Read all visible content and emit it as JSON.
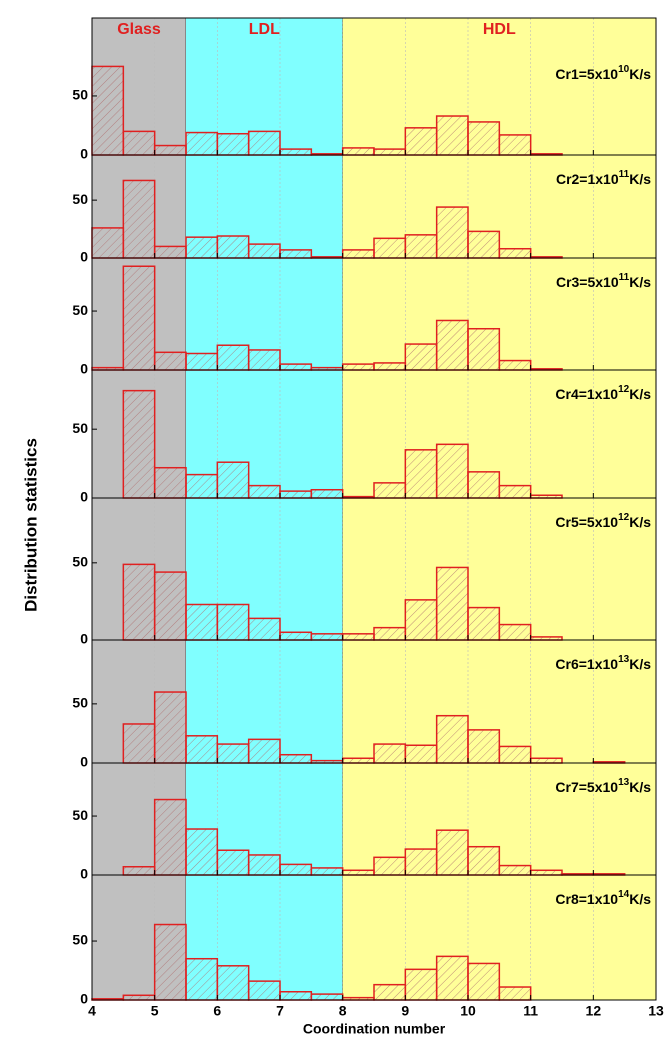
{
  "chart_data": {
    "type": "histogram",
    "xlabel": "Coordination number",
    "ylabel": "Distribution statistics",
    "xlim": [
      4,
      13
    ],
    "xticks": [
      4,
      5,
      6,
      7,
      8,
      9,
      10,
      11,
      12,
      13
    ],
    "grid": true,
    "color": "#e02020",
    "bins": [
      4,
      4.5,
      5,
      5.5,
      6,
      6.5,
      7,
      7.5,
      8,
      8.5,
      9,
      9.5,
      10,
      10.5,
      11,
      11.5,
      12,
      12.5,
      13
    ],
    "regions": [
      {
        "label": "Glass",
        "range": [
          4,
          5.5
        ],
        "color": "#c0c0c0"
      },
      {
        "label": "LDL",
        "range": [
          5.5,
          8
        ],
        "color": "#80ffff"
      },
      {
        "label": "HDL",
        "range": [
          8,
          13
        ],
        "color": "#ffff99"
      }
    ],
    "panels": [
      {
        "label": {
          "base": "Cr1=5x10",
          "exponent": "10",
          "unit": "K/s"
        },
        "ylim": [
          0,
          116
        ],
        "yticks": [
          0,
          50
        ],
        "values": [
          75,
          20,
          8,
          19,
          18,
          20,
          5,
          1,
          6,
          5,
          23,
          33,
          28,
          17,
          1,
          0,
          0,
          0
        ]
      },
      {
        "label": {
          "base": "Cr2=1x10",
          "exponent": "11",
          "unit": "K/s"
        },
        "ylim": [
          0,
          89
        ],
        "yticks": [
          0,
          50
        ],
        "values": [
          26,
          67,
          10,
          18,
          19,
          12,
          7,
          1,
          7,
          17,
          20,
          44,
          23,
          8,
          1,
          0,
          0,
          0
        ]
      },
      {
        "label": {
          "base": "Cr3=5x10",
          "exponent": "11",
          "unit": "K/s"
        },
        "ylim": [
          0,
          95
        ],
        "yticks": [
          0,
          50
        ],
        "values": [
          2,
          88,
          15,
          14,
          21,
          17,
          5,
          2,
          5,
          6,
          22,
          42,
          35,
          8,
          1,
          0,
          0,
          0
        ]
      },
      {
        "label": {
          "base": "Cr4=1x10",
          "exponent": "12",
          "unit": "K/s"
        },
        "ylim": [
          0,
          93
        ],
        "yticks": [
          0,
          50
        ],
        "values": [
          0,
          78,
          22,
          17,
          26,
          9,
          5,
          6,
          1,
          11,
          35,
          39,
          19,
          9,
          2,
          0,
          0,
          0
        ]
      },
      {
        "label": {
          "base": "Cr5=5x10",
          "exponent": "12",
          "unit": "K/s"
        },
        "ylim": [
          0,
          92
        ],
        "yticks": [
          0,
          50
        ],
        "values": [
          0,
          49,
          44,
          23,
          23,
          14,
          5,
          4,
          4,
          8,
          26,
          47,
          21,
          10,
          2,
          0,
          0,
          0
        ]
      },
      {
        "label": {
          "base": "Cr6=1x10",
          "exponent": "13",
          "unit": "K/s"
        },
        "ylim": [
          0,
          104
        ],
        "yticks": [
          0,
          50
        ],
        "values": [
          0,
          33,
          60,
          23,
          16,
          20,
          7,
          2,
          4,
          16,
          15,
          40,
          28,
          14,
          4,
          0,
          1,
          0
        ]
      },
      {
        "label": {
          "base": "Cr7=5x10",
          "exponent": "13",
          "unit": "K/s"
        },
        "ylim": [
          0,
          95
        ],
        "yticks": [
          0,
          50
        ],
        "values": [
          0,
          7,
          64,
          39,
          21,
          17,
          9,
          6,
          4,
          15,
          22,
          38,
          24,
          8,
          4,
          1,
          1,
          0
        ]
      },
      {
        "label": {
          "base": "Cr8=1x10",
          "exponent": "14",
          "unit": "K/s"
        },
        "ylim": [
          0,
          106
        ],
        "yticks": [
          0,
          50
        ],
        "values": [
          1,
          4,
          64,
          35,
          29,
          16,
          7,
          5,
          2,
          13,
          26,
          37,
          31,
          11,
          0,
          0,
          0,
          0
        ]
      }
    ]
  }
}
